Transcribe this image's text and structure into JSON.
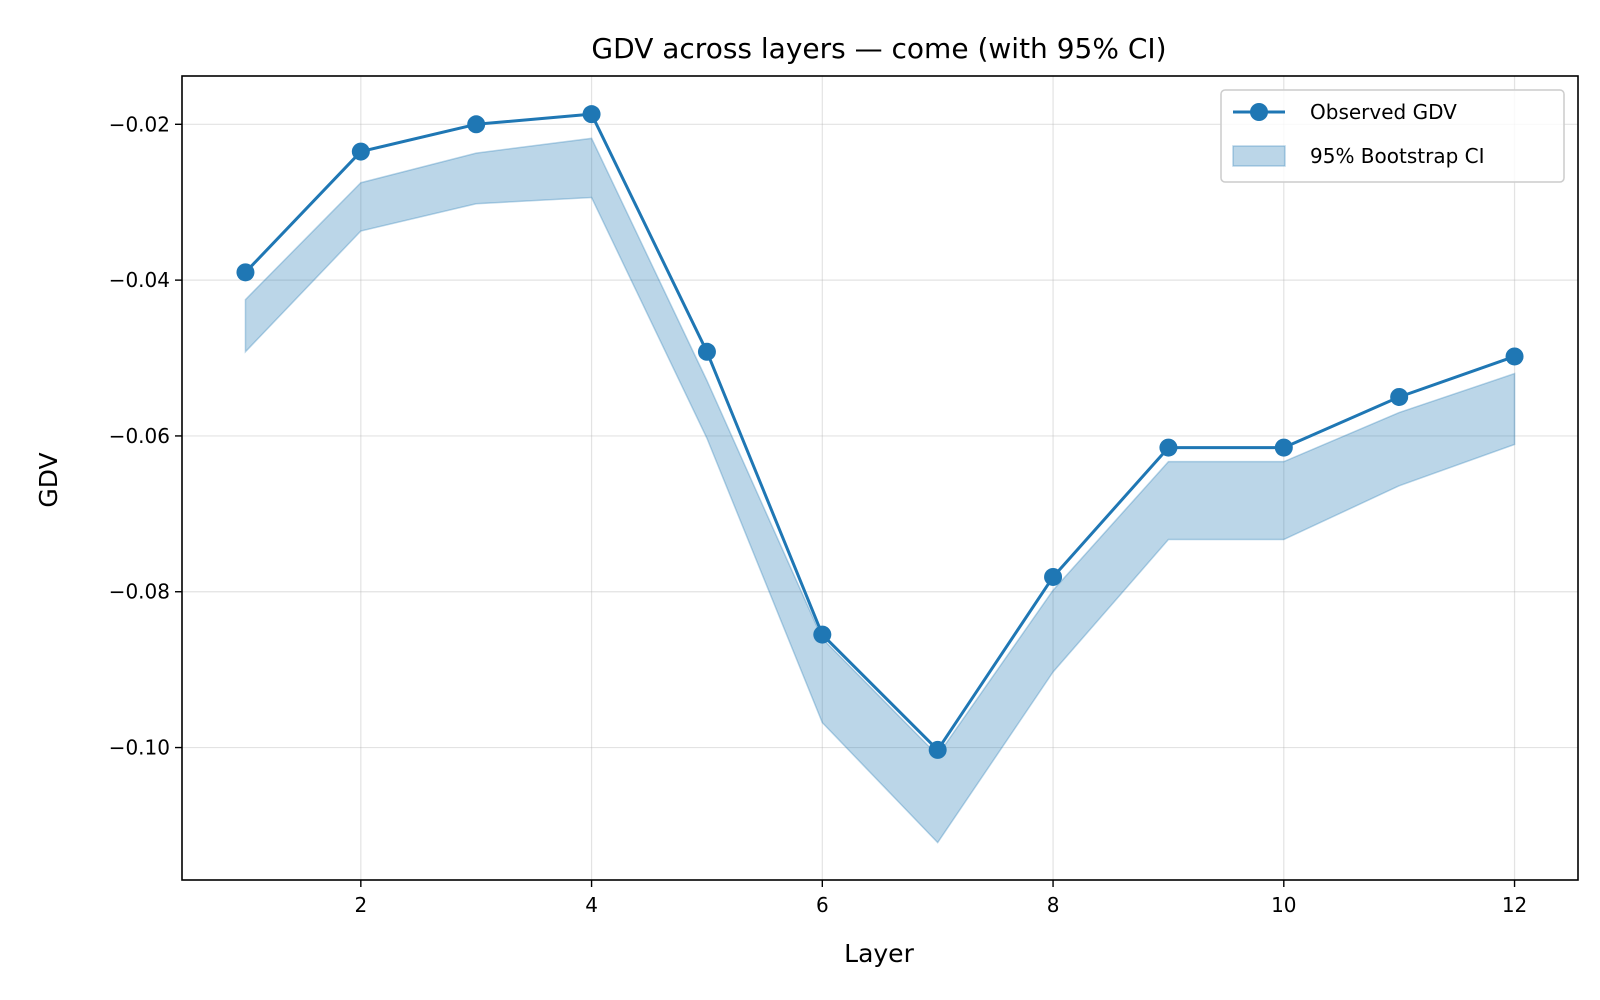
{
  "chart_data": {
    "type": "line",
    "title": "GDV across layers — come (with 95% CI)",
    "xlabel": "Layer",
    "ylabel": "GDV",
    "x": [
      1,
      2,
      3,
      4,
      5,
      6,
      7,
      8,
      9,
      10,
      11,
      12
    ],
    "series": [
      {
        "name": "Observed GDV",
        "values": [
          -0.039,
          -0.0235,
          -0.02,
          -0.0187,
          -0.0492,
          -0.0855,
          -0.1003,
          -0.0781,
          -0.0615,
          -0.0615,
          -0.055,
          -0.0498
        ],
        "color": "#1f77b4"
      }
    ],
    "ci": {
      "name": "95% Bootstrap CI",
      "lower": [
        -0.0492,
        -0.0337,
        -0.0302,
        -0.0294,
        -0.0603,
        -0.0968,
        -0.1122,
        -0.0903,
        -0.0733,
        -0.0733,
        -0.0664,
        -0.0611
      ],
      "upper": [
        -0.0425,
        -0.0275,
        -0.0237,
        -0.0218,
        -0.0529,
        -0.086,
        -0.101,
        -0.0798,
        -0.0633,
        -0.0633,
        -0.057,
        -0.052
      ],
      "color": "#1f77b4"
    },
    "xlim": [
      0.45,
      12.55
    ],
    "ylim": [
      -0.117,
      -0.0138
    ],
    "xticks": [
      2,
      4,
      6,
      8,
      10,
      12
    ],
    "xtick_labels": [
      "2",
      "4",
      "6",
      "8",
      "10",
      "12"
    ],
    "yticks": [
      -0.1,
      -0.08,
      -0.06,
      -0.04,
      -0.02
    ],
    "ytick_labels": [
      "−0.10",
      "−0.08",
      "−0.06",
      "−0.04",
      "−0.02"
    ],
    "grid": true,
    "legend_position": "top-right"
  }
}
